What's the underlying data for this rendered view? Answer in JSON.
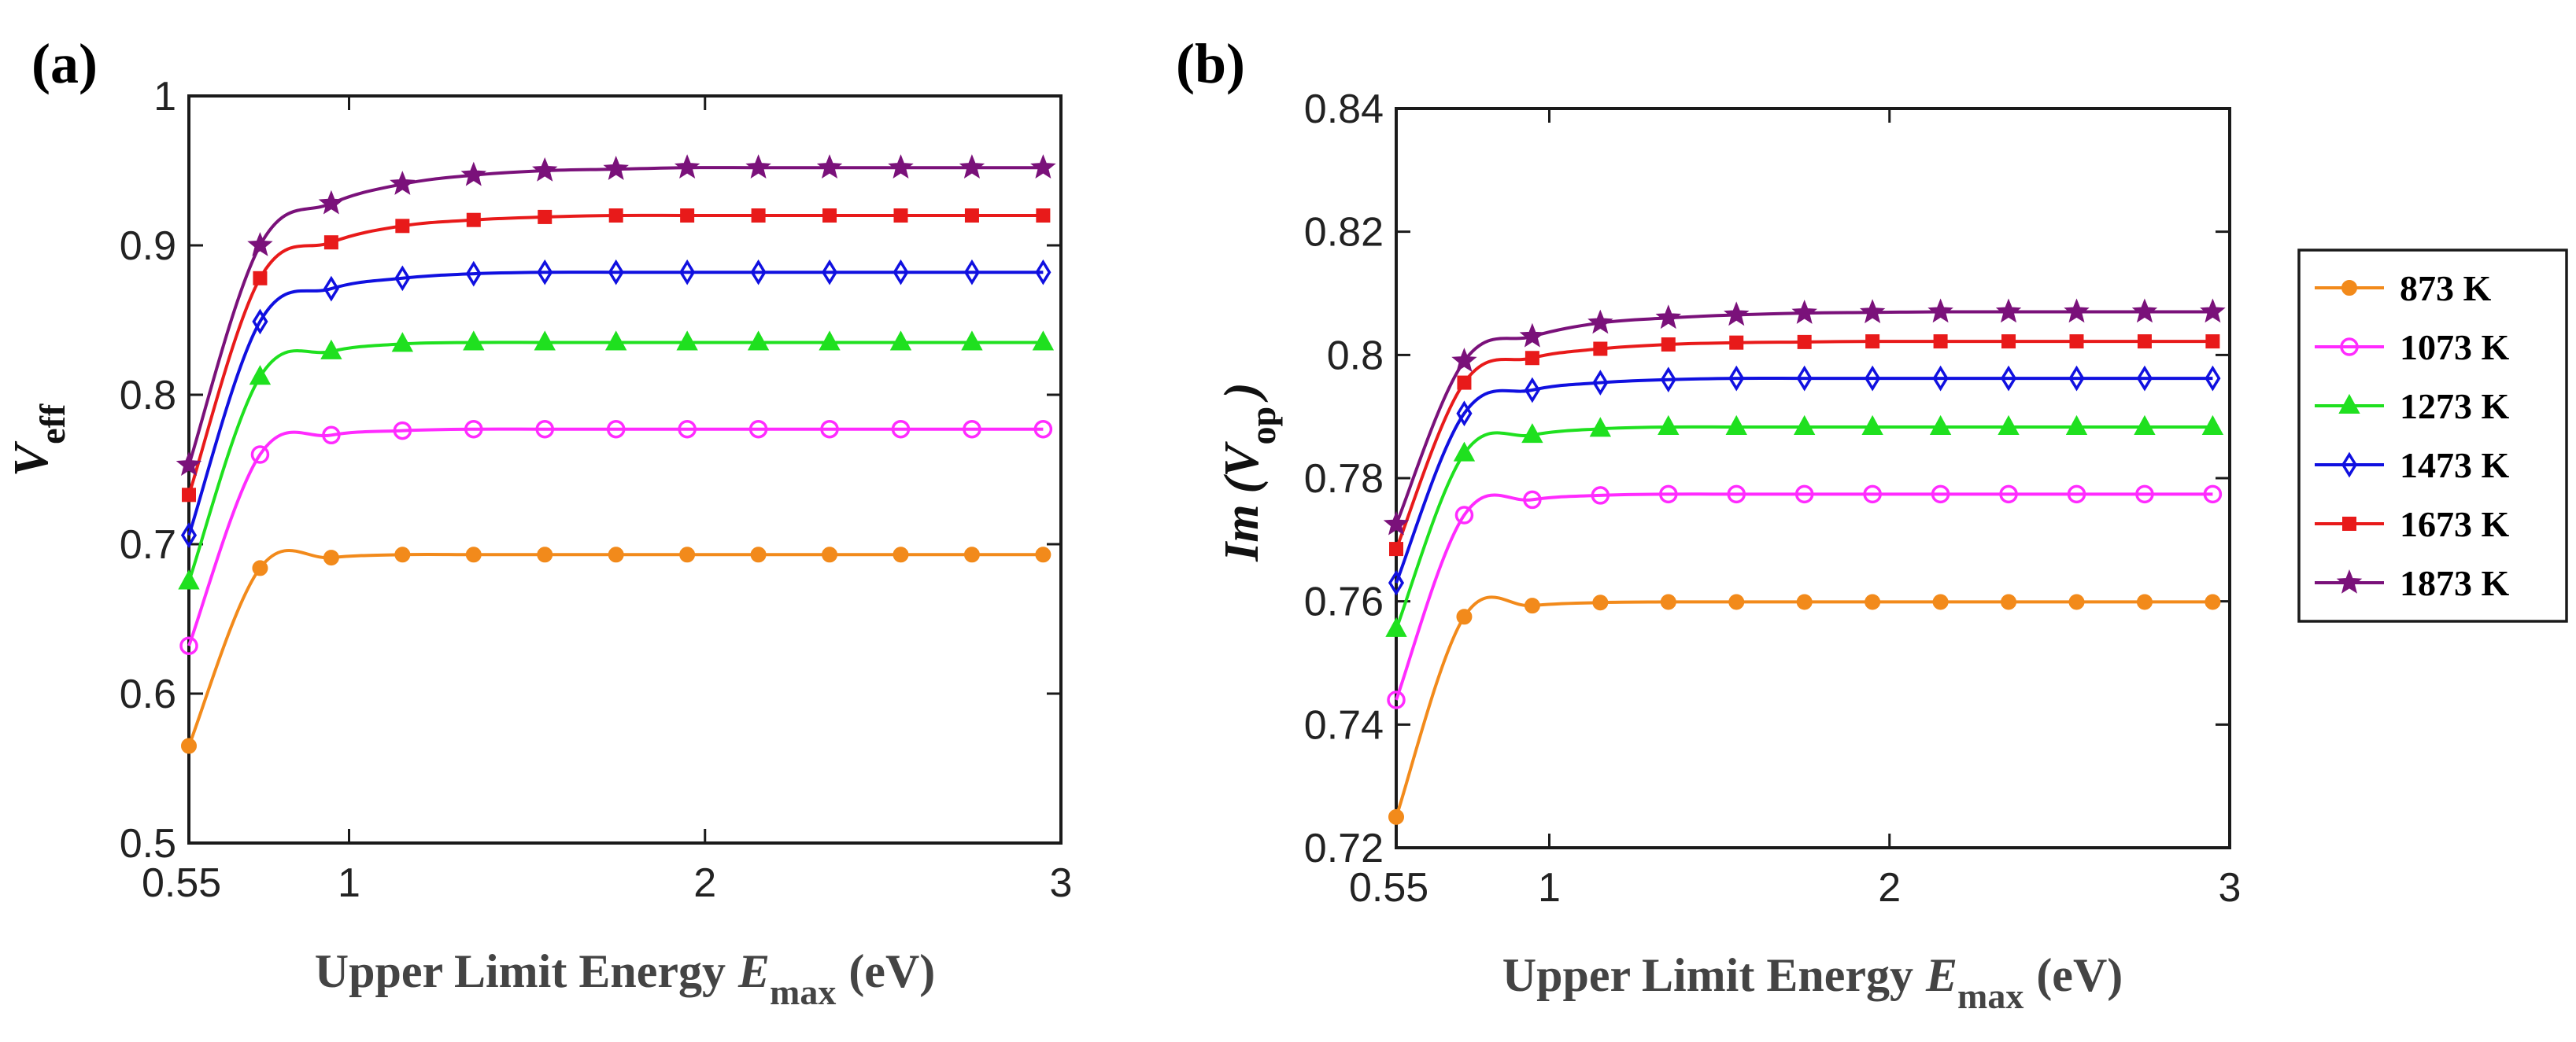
{
  "chart_data": [
    {
      "type": "line",
      "panel_label": "(a)",
      "xlabel": "Upper Limit Energy",
      "xlabel_var": "E",
      "xlabel_sub": "max",
      "xlabel_unit": "(eV)",
      "ylabel_var": "V",
      "ylabel_sub": "eff",
      "xlim": [
        0.55,
        3
      ],
      "ylim": [
        0.5,
        1
      ],
      "xticks": [
        0.55,
        1,
        2,
        3
      ],
      "xtick_labels": [
        "0.55",
        "1",
        "2",
        "3"
      ],
      "yticks": [
        0.5,
        0.6,
        0.7,
        0.8,
        0.9,
        1
      ],
      "ytick_labels": [
        "0.5",
        "0.6",
        "0.7",
        "0.8",
        "0.9",
        "1"
      ],
      "grid": false,
      "x": [
        0.55,
        0.75,
        0.95,
        1.15,
        1.35,
        1.55,
        1.75,
        1.95,
        2.15,
        2.35,
        2.55,
        2.75,
        2.95
      ],
      "series": [
        {
          "name": "873 K",
          "color": "#F28A1B",
          "marker": "dot",
          "values": [
            0.565,
            0.684,
            0.691,
            0.693,
            0.693,
            0.693,
            0.693,
            0.693,
            0.693,
            0.693,
            0.693,
            0.693,
            0.693
          ]
        },
        {
          "name": "1073 K",
          "color": "#FF2BFF",
          "marker": "circle",
          "values": [
            0.632,
            0.76,
            0.773,
            0.776,
            0.777,
            0.777,
            0.777,
            0.777,
            0.777,
            0.777,
            0.777,
            0.777,
            0.777
          ]
        },
        {
          "name": "1273 K",
          "color": "#1FE01F",
          "marker": "triangle",
          "values": [
            0.675,
            0.812,
            0.829,
            0.834,
            0.835,
            0.835,
            0.835,
            0.835,
            0.835,
            0.835,
            0.835,
            0.835,
            0.835
          ]
        },
        {
          "name": "1473 K",
          "color": "#1010E0",
          "marker": "diamond",
          "values": [
            0.706,
            0.849,
            0.871,
            0.878,
            0.881,
            0.882,
            0.882,
            0.882,
            0.882,
            0.882,
            0.882,
            0.882,
            0.882
          ]
        },
        {
          "name": "1673 K",
          "color": "#E81A1A",
          "marker": "square",
          "values": [
            0.733,
            0.878,
            0.902,
            0.913,
            0.917,
            0.919,
            0.92,
            0.92,
            0.92,
            0.92,
            0.92,
            0.92,
            0.92
          ]
        },
        {
          "name": "1873 K",
          "color": "#7A117A",
          "marker": "star",
          "values": [
            0.753,
            0.9,
            0.928,
            0.941,
            0.947,
            0.95,
            0.951,
            0.952,
            0.952,
            0.952,
            0.952,
            0.952,
            0.952
          ]
        }
      ]
    },
    {
      "type": "line",
      "panel_label": "(b)",
      "xlabel": "Upper Limit Energy",
      "xlabel_var": "E",
      "xlabel_sub": "max",
      "xlabel_unit": "(eV)",
      "ylabel_prefix": "Im",
      "ylabel_var": "V",
      "ylabel_sub": "op",
      "xlim": [
        0.55,
        3
      ],
      "ylim": [
        0.72,
        0.84
      ],
      "xticks": [
        0.55,
        1,
        2,
        3
      ],
      "xtick_labels": [
        "0.55",
        "1",
        "2",
        "3"
      ],
      "yticks": [
        0.72,
        0.74,
        0.76,
        0.78,
        0.8,
        0.82,
        0.84
      ],
      "ytick_labels": [
        "0.72",
        "0.74",
        "0.76",
        "0.78",
        "0.8",
        "0.82",
        "0.84"
      ],
      "grid": false,
      "x": [
        0.55,
        0.75,
        0.95,
        1.15,
        1.35,
        1.55,
        1.75,
        1.95,
        2.15,
        2.35,
        2.55,
        2.75,
        2.95
      ],
      "series": [
        {
          "name": "873 K",
          "color": "#F28A1B",
          "marker": "dot",
          "values": [
            0.725,
            0.7575,
            0.7593,
            0.7598,
            0.7599,
            0.7599,
            0.7599,
            0.7599,
            0.7599,
            0.7599,
            0.7599,
            0.7599,
            0.7599
          ]
        },
        {
          "name": "1073 K",
          "color": "#FF2BFF",
          "marker": "circle",
          "values": [
            0.744,
            0.774,
            0.7765,
            0.7772,
            0.7774,
            0.7774,
            0.7774,
            0.7774,
            0.7774,
            0.7774,
            0.7774,
            0.7774,
            0.7774
          ]
        },
        {
          "name": "1273 K",
          "color": "#1FE01F",
          "marker": "triangle",
          "values": [
            0.7555,
            0.784,
            0.787,
            0.788,
            0.7883,
            0.7883,
            0.7883,
            0.7883,
            0.7883,
            0.7883,
            0.7883,
            0.7883,
            0.7883
          ]
        },
        {
          "name": "1473 K",
          "color": "#1010E0",
          "marker": "diamond",
          "values": [
            0.763,
            0.7905,
            0.7943,
            0.7955,
            0.796,
            0.7962,
            0.7962,
            0.7962,
            0.7962,
            0.7962,
            0.7962,
            0.7962,
            0.7962
          ]
        },
        {
          "name": "1673 K",
          "color": "#E81A1A",
          "marker": "square",
          "values": [
            0.7685,
            0.7955,
            0.7995,
            0.801,
            0.8017,
            0.802,
            0.8021,
            0.8022,
            0.8022,
            0.8022,
            0.8022,
            0.8022,
            0.8022
          ]
        },
        {
          "name": "1873 K",
          "color": "#7A117A",
          "marker": "star",
          "values": [
            0.7725,
            0.799,
            0.803,
            0.8052,
            0.806,
            0.8065,
            0.8068,
            0.8069,
            0.807,
            0.807,
            0.807,
            0.807,
            0.807
          ]
        }
      ]
    }
  ],
  "legend": {
    "placement": "right",
    "entries": [
      {
        "label": "873 K",
        "color": "#F28A1B",
        "marker": "dot"
      },
      {
        "label": "1073 K",
        "color": "#FF2BFF",
        "marker": "circle"
      },
      {
        "label": "1273 K",
        "color": "#1FE01F",
        "marker": "triangle"
      },
      {
        "label": "1473 K",
        "color": "#1010E0",
        "marker": "diamond"
      },
      {
        "label": "1673 K",
        "color": "#E81A1A",
        "marker": "square"
      },
      {
        "label": "1873 K",
        "color": "#7A117A",
        "marker": "star"
      }
    ]
  }
}
